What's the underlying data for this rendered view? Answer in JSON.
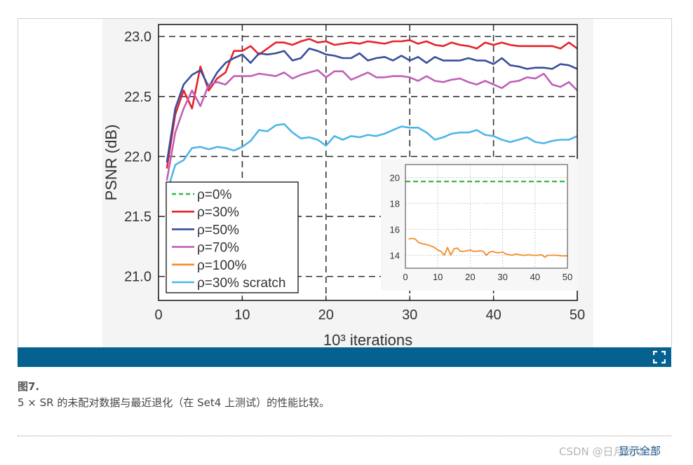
{
  "caption": {
    "title": "图7.",
    "text": "5 × SR 的未配对数据与最近退化（在 Set4 上测试）的性能比较。"
  },
  "footer": {
    "show_all": "显示全部",
    "watermark": "CSDN @日月光华11"
  },
  "icons": {
    "expand": "expand-icon"
  },
  "colors": {
    "bar": "#056190",
    "link": "#1a5c96"
  },
  "chart_data": [
    {
      "type": "line",
      "xlabel": "10³ iterations",
      "ylabel": "PSNR (dB)",
      "xlim": [
        0,
        50
      ],
      "ylim": [
        20.8,
        23.1
      ],
      "xticks": [
        0,
        10,
        20,
        30,
        40,
        50
      ],
      "yticks": [
        21.0,
        21.5,
        22.0,
        22.5,
        23.0
      ],
      "ytick_labels": [
        "21.0",
        "21.5",
        "22.0",
        "22.5",
        "23.0"
      ],
      "grid": "dashed",
      "legend": "bottom-left",
      "series": [
        {
          "name": "ρ=0%",
          "color": "#39b54a",
          "dash": true,
          "x": [],
          "y": []
        },
        {
          "name": "ρ=30%",
          "color": "#e8222a",
          "x": [
            1,
            2,
            3,
            4,
            5,
            6,
            7,
            8,
            9,
            10,
            11,
            12,
            13,
            14,
            15,
            16,
            17,
            18,
            19,
            20,
            21,
            22,
            23,
            24,
            25,
            26,
            27,
            28,
            29,
            30,
            31,
            32,
            33,
            34,
            35,
            36,
            37,
            38,
            39,
            40,
            41,
            42,
            43,
            44,
            45,
            46,
            47,
            48,
            49,
            50
          ],
          "y": [
            21.9,
            22.35,
            22.55,
            22.4,
            22.75,
            22.55,
            22.65,
            22.7,
            22.88,
            22.88,
            22.92,
            22.85,
            22.9,
            22.95,
            22.95,
            22.93,
            22.96,
            22.98,
            22.95,
            22.96,
            22.93,
            22.94,
            22.95,
            22.94,
            22.96,
            22.95,
            22.94,
            22.96,
            22.96,
            22.97,
            22.94,
            22.96,
            22.93,
            22.92,
            22.95,
            22.93,
            22.92,
            22.9,
            22.95,
            22.93,
            22.95,
            22.93,
            22.92,
            22.92,
            22.92,
            22.92,
            22.92,
            22.9,
            22.95,
            22.9
          ]
        },
        {
          "name": "ρ=50%",
          "color": "#3a4e9a",
          "x": [
            1,
            2,
            3,
            4,
            5,
            6,
            7,
            8,
            9,
            10,
            11,
            12,
            13,
            14,
            15,
            16,
            17,
            18,
            19,
            20,
            21,
            22,
            23,
            24,
            25,
            26,
            27,
            28,
            29,
            30,
            31,
            32,
            33,
            34,
            35,
            36,
            37,
            38,
            39,
            40,
            41,
            42,
            43,
            44,
            45,
            46,
            47,
            48,
            49,
            50
          ],
          "y": [
            21.95,
            22.4,
            22.6,
            22.68,
            22.72,
            22.58,
            22.7,
            22.78,
            22.82,
            22.85,
            22.78,
            22.86,
            22.85,
            22.86,
            22.88,
            22.8,
            22.82,
            22.9,
            22.88,
            22.85,
            22.84,
            22.82,
            22.82,
            22.86,
            22.8,
            22.82,
            22.83,
            22.8,
            22.84,
            22.8,
            22.83,
            22.78,
            22.83,
            22.8,
            22.8,
            22.8,
            22.82,
            22.8,
            22.8,
            22.77,
            22.82,
            22.76,
            22.75,
            22.73,
            22.74,
            22.74,
            22.73,
            22.77,
            22.76,
            22.73
          ]
        },
        {
          "name": "ρ=70%",
          "color": "#c060b8",
          "x": [
            1,
            2,
            3,
            4,
            5,
            6,
            7,
            8,
            9,
            10,
            11,
            12,
            13,
            14,
            15,
            16,
            17,
            18,
            19,
            20,
            21,
            22,
            23,
            24,
            25,
            26,
            27,
            28,
            29,
            30,
            31,
            32,
            33,
            34,
            35,
            36,
            37,
            38,
            39,
            40,
            41,
            42,
            43,
            44,
            45,
            46,
            47,
            48,
            49,
            50
          ],
          "y": [
            21.8,
            22.2,
            22.4,
            22.55,
            22.42,
            22.6,
            22.62,
            22.6,
            22.67,
            22.67,
            22.67,
            22.69,
            22.68,
            22.67,
            22.7,
            22.65,
            22.68,
            22.7,
            22.72,
            22.66,
            22.71,
            22.71,
            22.64,
            22.67,
            22.7,
            22.66,
            22.66,
            22.67,
            22.67,
            22.66,
            22.63,
            22.67,
            22.63,
            22.62,
            22.64,
            22.65,
            22.62,
            22.6,
            22.63,
            22.6,
            22.57,
            22.62,
            22.63,
            22.66,
            22.65,
            22.69,
            22.6,
            22.58,
            22.62,
            22.55
          ]
        },
        {
          "name": "ρ=100%",
          "color": "#f28c28",
          "x": [],
          "y": []
        },
        {
          "name": "ρ=30% scratch",
          "color": "#4db6e8",
          "x": [
            1,
            2,
            3,
            4,
            5,
            6,
            7,
            8,
            9,
            10,
            11,
            12,
            13,
            14,
            15,
            16,
            17,
            18,
            19,
            20,
            21,
            22,
            23,
            24,
            25,
            26,
            27,
            28,
            29,
            30,
            31,
            32,
            33,
            34,
            35,
            36,
            37,
            38,
            39,
            40,
            41,
            42,
            43,
            44,
            45,
            46,
            47,
            48,
            49,
            50
          ],
          "y": [
            21.7,
            21.93,
            21.97,
            22.07,
            22.08,
            22.06,
            22.08,
            22.07,
            22.05,
            22.08,
            22.13,
            22.22,
            22.21,
            22.26,
            22.27,
            22.2,
            22.15,
            22.16,
            22.14,
            22.09,
            22.17,
            22.14,
            22.17,
            22.16,
            22.18,
            22.17,
            22.19,
            22.22,
            22.25,
            22.24,
            22.24,
            22.2,
            22.14,
            22.16,
            22.19,
            22.2,
            22.2,
            22.22,
            22.18,
            22.17,
            22.14,
            22.12,
            22.14,
            22.16,
            22.12,
            22.11,
            22.13,
            22.14,
            22.14,
            22.17
          ]
        }
      ]
    },
    {
      "type": "line",
      "inset": true,
      "xlim": [
        0,
        50
      ],
      "ylim": [
        13,
        21
      ],
      "xticks": [
        0,
        10,
        20,
        30,
        40,
        50
      ],
      "yticks": [
        14,
        16,
        18,
        20
      ],
      "grid": "dotted",
      "series": [
        {
          "name": "ρ=0%",
          "color": "#39b54a",
          "dash": true,
          "x": [
            0,
            50
          ],
          "y": [
            19.7,
            19.7
          ]
        },
        {
          "name": "ρ=100%",
          "color": "#f28c28",
          "x": [
            1,
            2,
            3,
            4,
            5,
            6,
            7,
            8,
            9,
            10,
            11,
            12,
            13,
            14,
            15,
            16,
            17,
            18,
            19,
            20,
            21,
            22,
            23,
            24,
            25,
            26,
            27,
            28,
            29,
            30,
            31,
            32,
            33,
            34,
            35,
            36,
            37,
            38,
            39,
            40,
            41,
            42,
            43,
            44,
            45,
            46,
            47,
            48,
            49,
            50
          ],
          "y": [
            15.25,
            15.3,
            15.25,
            15.0,
            14.9,
            14.85,
            14.8,
            14.7,
            14.6,
            14.4,
            14.3,
            14.0,
            14.6,
            14.0,
            14.5,
            14.55,
            14.3,
            14.3,
            14.35,
            14.4,
            14.3,
            14.3,
            14.35,
            14.3,
            14.0,
            14.25,
            14.3,
            14.2,
            14.2,
            14.25,
            14.1,
            14.05,
            14.0,
            14.1,
            14.05,
            14.0,
            14.0,
            14.05,
            14.0,
            14.0,
            14.0,
            14.05,
            13.85,
            14.0,
            14.0,
            14.0,
            14.0,
            13.95,
            13.95,
            13.95
          ]
        }
      ]
    }
  ]
}
